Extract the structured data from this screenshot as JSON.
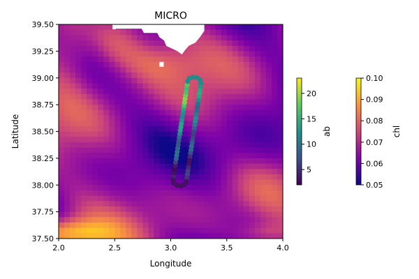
{
  "chart_data": {
    "type": "heatmap",
    "title": "MICRO",
    "xlabel": "Longitude",
    "ylabel": "Latitude",
    "xlim": [
      2.0,
      4.0
    ],
    "ylim": [
      37.5,
      39.5
    ],
    "xticks": [
      "2.0",
      "2.5",
      "3.0",
      "3.5",
      "4.0"
    ],
    "xtick_values": [
      2.0,
      2.5,
      3.0,
      3.5,
      4.0
    ],
    "yticks": [
      "37.50",
      "37.75",
      "38.00",
      "38.25",
      "38.50",
      "38.75",
      "39.00",
      "39.25",
      "39.50"
    ],
    "ytick_values": [
      37.5,
      37.75,
      38.0,
      38.25,
      38.5,
      38.75,
      39.0,
      39.25,
      39.5
    ],
    "background_field": {
      "name": "chl",
      "colormap": "plasma",
      "range": [
        0.05,
        0.1
      ],
      "land_mask": "white area near top center (~2.5–3.3 E, above ~39.1 N)"
    },
    "track": {
      "name": "ab",
      "colormap": "viridis",
      "range": [
        2,
        23
      ],
      "shape": "closed elongated loop from ~(3.08, 38.02) to ~(3.27, 38.97)"
    },
    "colorbars": [
      {
        "label": "ab",
        "ticks": [
          "5",
          "10",
          "15",
          "20"
        ],
        "tick_values": [
          5,
          10,
          15,
          20
        ],
        "range": [
          2,
          23
        ],
        "colormap": "viridis"
      },
      {
        "label": "chl",
        "ticks": [
          "0.05",
          "0.06",
          "0.07",
          "0.08",
          "0.09",
          "0.10"
        ],
        "tick_values": [
          0.05,
          0.06,
          0.07,
          0.08,
          0.09,
          0.1
        ],
        "range": [
          0.05,
          0.1
        ],
        "colormap": "plasma"
      }
    ]
  }
}
